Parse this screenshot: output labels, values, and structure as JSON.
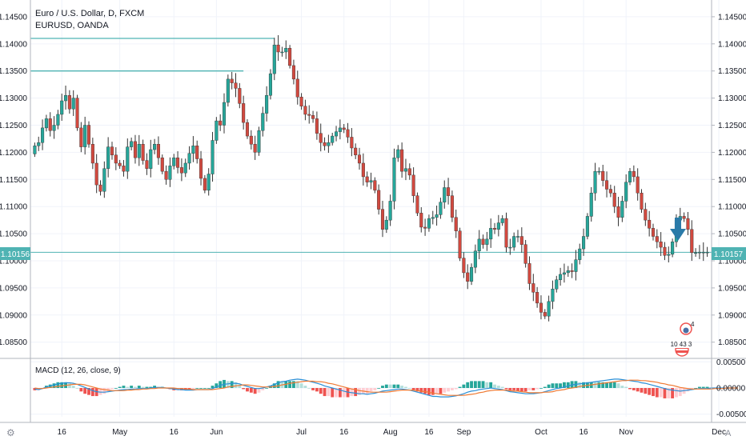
{
  "title": "Euro / U.S. Dollar, D, FXCM",
  "subtitle": "EURUSD, OANDA",
  "colors": {
    "up": "#26a69a",
    "down": "#d1493f",
    "wick": "#333333",
    "price_line": "#4fb3b3",
    "resistance": "#4fb3b3",
    "arrow": "#2a7aa8",
    "macd_line": "#2a8fd6",
    "signal_line": "#ef7b35",
    "hist_up_strong": "#26a69a",
    "hist_up_weak": "#b2dfdb",
    "hist_down_strong": "#ef5350",
    "hist_down_weak": "#ffcdd2"
  },
  "price_axis": {
    "ticks": [
      "1.14500",
      "1.14000",
      "1.13500",
      "1.13000",
      "1.12500",
      "1.12000",
      "1.11500",
      "1.11000",
      "1.10500",
      "1.10000",
      "1.09500",
      "1.09000",
      "1.08500"
    ],
    "tick_values": [
      1.145,
      1.14,
      1.135,
      1.13,
      1.125,
      1.12,
      1.115,
      1.11,
      1.105,
      1.1,
      1.095,
      1.09,
      1.085
    ],
    "ylim": [
      1.0823,
      1.1472
    ],
    "last_price_left": "1.10156",
    "last_price_right": "1.10157",
    "last_price": 1.10157
  },
  "macd_axis": {
    "ticks": [
      "0.00500",
      "0.00000",
      "-0.00500"
    ],
    "tick_values": [
      0.005,
      0.0,
      -0.005
    ],
    "ylim": [
      -0.0055,
      0.0055
    ],
    "label": "MACD (12, 26, close, 9)"
  },
  "time_axis": {
    "labels": [
      "16",
      "May",
      "16",
      "Jun",
      "Jul",
      "16",
      "Aug",
      "16",
      "Sep",
      "Oct",
      "16",
      "Nov",
      "Dec"
    ],
    "bar_index": [
      7,
      22,
      36,
      47,
      69,
      80,
      92,
      102,
      111,
      131,
      142,
      153,
      177
    ]
  },
  "resistance_lines": [
    {
      "price": 1.141,
      "from_bar": 0,
      "to_bar": 62
    },
    {
      "price": 1.135,
      "from_bar": 0,
      "to_bar": 54
    }
  ],
  "chart_data": {
    "type": "candlestick",
    "title": "Euro / U.S. Dollar, D, FXCM",
    "subtitle": "EURUSD, OANDA",
    "bars": 180,
    "close": [
      1.1212,
      1.1218,
      1.1245,
      1.1262,
      1.124,
      1.125,
      1.127,
      1.1295,
      1.1305,
      1.128,
      1.13,
      1.1245,
      1.121,
      1.125,
      1.1215,
      1.118,
      1.114,
      1.1128,
      1.117,
      1.121,
      1.1195,
      1.118,
      1.1175,
      1.1165,
      1.121,
      1.122,
      1.119,
      1.1215,
      1.1185,
      1.117,
      1.1205,
      1.1215,
      1.119,
      1.1165,
      1.115,
      1.1175,
      1.119,
      1.1172,
      1.1162,
      1.118,
      1.1198,
      1.1212,
      1.1188,
      1.1152,
      1.113,
      1.116,
      1.1222,
      1.1258,
      1.125,
      1.1292,
      1.1335,
      1.1328,
      1.1318,
      1.129,
      1.1255,
      1.123,
      1.1215,
      1.12,
      1.124,
      1.1272,
      1.1305,
      1.1345,
      1.1398,
      1.1385,
      1.1385,
      1.1392,
      1.136,
      1.1335,
      1.1302,
      1.1285,
      1.127,
      1.1268,
      1.1262,
      1.1235,
      1.1218,
      1.1212,
      1.1218,
      1.123,
      1.1238,
      1.1245,
      1.1242,
      1.1228,
      1.1208,
      1.1195,
      1.118,
      1.1155,
      1.1145,
      1.1148,
      1.113,
      1.1095,
      1.1058,
      1.1075,
      1.111,
      1.119,
      1.1205,
      1.1165,
      1.117,
      1.1158,
      1.112,
      1.1088,
      1.1062,
      1.106,
      1.1078,
      1.108,
      1.1085,
      1.1108,
      1.1135,
      1.112,
      1.108,
      1.1055,
      1.1005,
      1.0978,
      1.0962,
      1.0988,
      1.1018,
      1.104,
      1.103,
      1.104,
      1.106,
      1.1058,
      1.107,
      1.1078,
      1.1025,
      1.1025,
      1.1045,
      1.1045,
      1.103,
      1.0995,
      1.0958,
      1.0942,
      1.0922,
      1.0905,
      1.0898,
      1.0925,
      1.0948,
      1.0965,
      1.0975,
      1.0978,
      1.0982,
      1.098,
      1.1002,
      1.1022,
      1.1045,
      1.1082,
      1.1125,
      1.1165,
      1.1165,
      1.1148,
      1.1132,
      1.1125,
      1.11,
      1.108,
      1.111,
      1.1145,
      1.1165,
      1.1155,
      1.1125,
      1.1095,
      1.1075,
      1.106,
      1.1045,
      1.1035,
      1.1025,
      1.101,
      1.1012,
      1.1035,
      1.1075,
      1.1082,
      1.1078,
      1.1058,
      1.1015,
      1.1015,
      1.1016,
      1.1016,
      1.1016
    ],
    "macd": [
      -0.0002,
      -0.0003,
      -0.0001,
      0.0002,
      0.0004,
      0.0006,
      0.0008,
      0.0009,
      0.001,
      0.001,
      0.0009,
      0.0007,
      0.0004,
      0.0001,
      -0.0002,
      -0.0005,
      -0.0007,
      -0.0008,
      -0.0008,
      -0.0007,
      -0.0006,
      -0.0005,
      -0.0004,
      -0.0003,
      -0.0003,
      -0.0002,
      -0.0002,
      -0.0001,
      -0.0001,
      -0.0001,
      0.0,
      0.0001,
      0.0001,
      0.0001,
      0.0,
      -0.0001,
      -0.0002,
      -0.0003,
      -0.0003,
      -0.0004,
      -0.0004,
      -0.0004,
      -0.0003,
      -0.0003,
      -0.0003,
      -0.0003,
      -0.0001,
      0.0002,
      0.0005,
      0.0007,
      0.0008,
      0.0009,
      0.0009,
      0.0008,
      0.0005,
      0.0003,
      0.0001,
      -0.0001,
      -0.0001,
      0.0,
      0.0002,
      0.0004,
      0.0007,
      0.001,
      0.0012,
      0.0013,
      0.0015,
      0.0016,
      0.0017,
      0.0016,
      0.0015,
      0.0013,
      0.0011,
      0.0009,
      0.0007,
      0.0004,
      0.0002,
      0.0,
      -0.0002,
      -0.0004,
      -0.0006,
      -0.0008,
      -0.0009,
      -0.001,
      -0.0011,
      -0.0011,
      -0.0012,
      -0.0011,
      -0.001,
      -0.0008,
      -0.0006,
      -0.0005,
      -0.0004,
      -0.0003,
      -0.0002,
      -0.0002,
      -0.0003,
      -0.0004,
      -0.0006,
      -0.0008,
      -0.001,
      -0.0012,
      -0.0014,
      -0.0016,
      -0.0016,
      -0.0017,
      -0.0017,
      -0.0017,
      -0.0016,
      -0.0015,
      -0.0013,
      -0.0011,
      -0.0008,
      -0.0006,
      -0.0005,
      -0.0003,
      -0.0002,
      -0.0001,
      0.0,
      -0.0001,
      -0.0002,
      -0.0003,
      -0.0005,
      -0.0007,
      -0.0008,
      -0.0009,
      -0.001,
      -0.0011,
      -0.0011,
      -0.0011,
      -0.001,
      -0.0009,
      -0.0007,
      -0.0005,
      -0.0003,
      -0.0001,
      0.0,
      0.0002,
      0.0004,
      0.0006,
      0.0007,
      0.0008,
      0.0009,
      0.001,
      0.0011,
      0.0012,
      0.0013,
      0.0014,
      0.0015,
      0.0016,
      0.0017,
      0.0017,
      0.0016,
      0.0015,
      0.0014,
      0.0013,
      0.0012,
      0.001,
      0.0009,
      0.0007,
      0.0005,
      0.0003,
      0.0001,
      -0.0001,
      -0.0003,
      -0.0004,
      -0.0005,
      -0.0006,
      -0.0005,
      -0.0004,
      -0.0003,
      -0.0002,
      -0.0001,
      -0.0001,
      -0.0001,
      0.0,
      0.0,
      0.0,
      0.0,
      0.0,
      0.0,
      0.0
    ],
    "signal": [
      0.0,
      -0.0001,
      -0.0001,
      0.0,
      0.0001,
      0.0002,
      0.0003,
      0.0004,
      0.0005,
      0.0006,
      0.0007,
      0.0007,
      0.0007,
      0.0006,
      0.0004,
      0.0002,
      0.0,
      -0.0002,
      -0.0003,
      -0.0004,
      -0.0005,
      -0.0005,
      -0.0005,
      -0.0005,
      -0.0004,
      -0.0004,
      -0.0003,
      -0.0003,
      -0.0002,
      -0.0002,
      -0.0001,
      -0.0001,
      0.0,
      0.0,
      0.0,
      0.0,
      0.0,
      -0.0001,
      -0.0001,
      -0.0002,
      -0.0002,
      -0.0003,
      -0.0003,
      -0.0003,
      -0.0003,
      -0.0003,
      -0.0003,
      -0.0002,
      -0.0001,
      0.0,
      0.0002,
      0.0003,
      0.0004,
      0.0005,
      0.0006,
      0.0006,
      0.0005,
      0.0004,
      0.0003,
      0.0002,
      0.0002,
      0.0002,
      0.0003,
      0.0004,
      0.0006,
      0.0007,
      0.0009,
      0.001,
      0.0011,
      0.0012,
      0.0013,
      0.0013,
      0.0013,
      0.0012,
      0.0012,
      0.0011,
      0.0009,
      0.0008,
      0.0006,
      0.0004,
      0.0002,
      0.0,
      -0.0002,
      -0.0003,
      -0.0005,
      -0.0006,
      -0.0007,
      -0.0008,
      -0.0008,
      -0.0008,
      -0.0008,
      -0.0008,
      -0.0007,
      -0.0006,
      -0.0005,
      -0.0004,
      -0.0004,
      -0.0004,
      -0.0004,
      -0.0005,
      -0.0006,
      -0.0007,
      -0.0008,
      -0.001,
      -0.0011,
      -0.0012,
      -0.0013,
      -0.0014,
      -0.0014,
      -0.0014,
      -0.0014,
      -0.0014,
      -0.0013,
      -0.0012,
      -0.0011,
      -0.0009,
      -0.0008,
      -0.0006,
      -0.0005,
      -0.0004,
      -0.0004,
      -0.0004,
      -0.0004,
      -0.0005,
      -0.0006,
      -0.0006,
      -0.0007,
      -0.0008,
      -0.0009,
      -0.0009,
      -0.0009,
      -0.0009,
      -0.0008,
      -0.0008,
      -0.0007,
      -0.0005,
      -0.0004,
      -0.0003,
      -0.0001,
      0.0,
      0.0001,
      0.0003,
      0.0004,
      0.0005,
      0.0006,
      0.0007,
      0.0008,
      0.0009,
      0.001,
      0.0011,
      0.0012,
      0.0013,
      0.0014,
      0.0014,
      0.0015,
      0.0015,
      0.0015,
      0.0014,
      0.0014,
      0.0013,
      0.0012,
      0.0011,
      0.0009,
      0.0008,
      0.0006,
      0.0005,
      0.0003,
      0.0001,
      0.0,
      -0.0001,
      -0.0002,
      -0.0002,
      -0.0002,
      -0.0002,
      -0.0002,
      -0.0002,
      -0.0001,
      -0.0001,
      -0.0001,
      0.0,
      0.0,
      0.0,
      0.0
    ],
    "annotations": [
      "1.10156",
      "1.10157",
      "10 43 3",
      "4"
    ],
    "grid": true,
    "legend": "top-left"
  },
  "badges": {
    "event_count_text": "4",
    "event_row_text": "10 43 3"
  },
  "corner": {
    "bottom_left": "⚙",
    "bottom_right": "A"
  }
}
